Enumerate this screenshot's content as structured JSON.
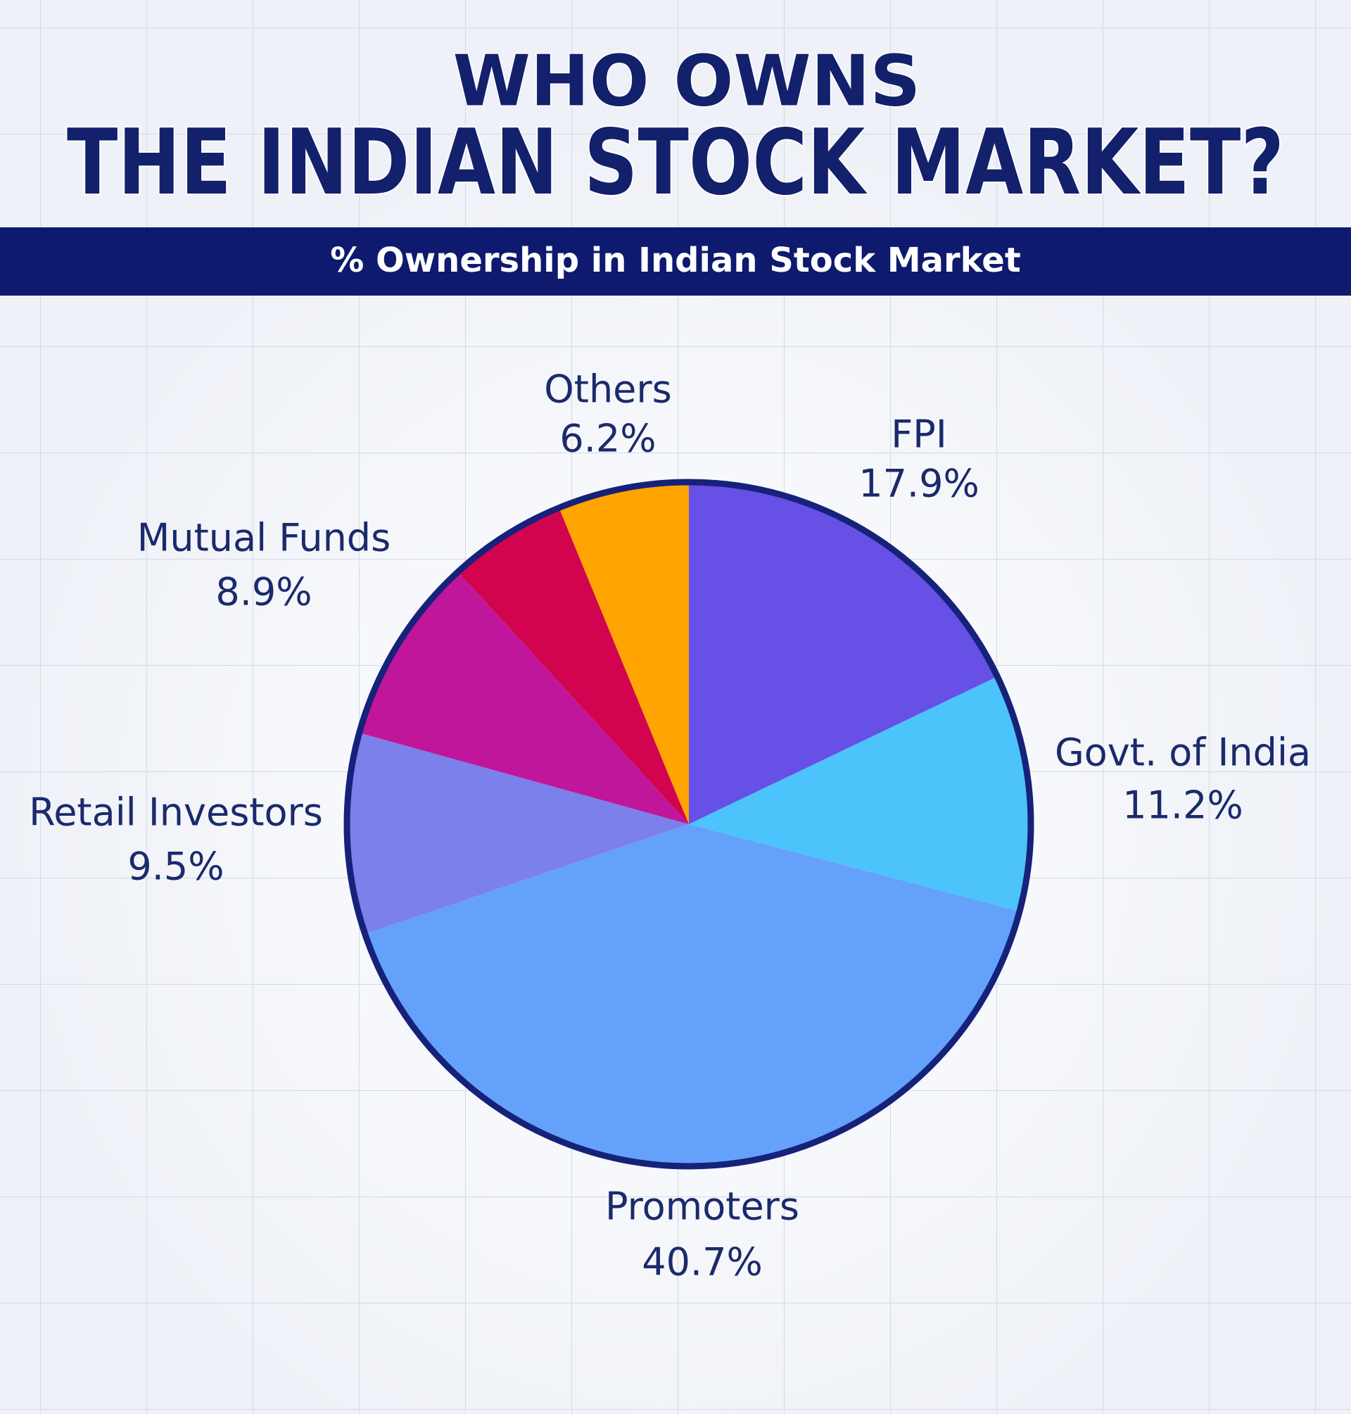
{
  "chart_data": {
    "type": "pie",
    "title": "WHO OWNS",
    "subtitle": "THE INDIAN STOCK MARKET?",
    "banner": "% Ownership in Indian Stock Market",
    "categories": [
      "FPI",
      "Govt. of India",
      "Promoters",
      "Retail Investors",
      "Mutual Funds",
      null,
      "Others"
    ],
    "values": [
      17.9,
      11.2,
      40.7,
      9.5,
      8.9,
      5.6,
      6.2
    ],
    "value_labels": [
      "17.9%",
      "11.2%",
      "40.7%",
      "9.5%",
      "8.9%",
      null,
      "6.2%"
    ],
    "colors": [
      "#6650e6",
      "#4cc4fb",
      "#64a1fb",
      "#7c80ea",
      "#c0169b",
      "#d2044f",
      "#ffa400"
    ]
  }
}
